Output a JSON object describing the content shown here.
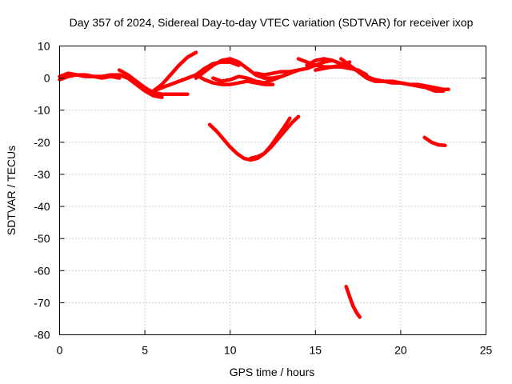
{
  "chart_data": {
    "type": "line",
    "title": "Day 357 of 2024, Sidereal Day-to-day VTEC variation (SDTVAR) for receiver ixop",
    "xlabel": "GPS time / hours",
    "ylabel": "SDTVAR / TECUs",
    "xlim": [
      0,
      25
    ],
    "ylim": [
      -80,
      10
    ],
    "xticks": [
      0,
      5,
      10,
      15,
      20,
      25
    ],
    "yticks": [
      -80,
      -70,
      -60,
      -50,
      -40,
      -30,
      -20,
      -10,
      0,
      10
    ],
    "grid": true,
    "series_color": "#ff0000",
    "series": [
      {
        "name": "arc-early-flat",
        "x": [
          0,
          0.5,
          1,
          1.5,
          2,
          2.5,
          3,
          3.5
        ],
        "y": [
          -0.5,
          0.5,
          1,
          0.5,
          0.5,
          0.5,
          1,
          1
        ]
      },
      {
        "name": "arc-early-flat-b",
        "x": [
          0,
          0.5,
          1,
          1.5,
          2,
          2.5,
          3,
          3.5
        ],
        "y": [
          0.5,
          1.5,
          1,
          1,
          0.5,
          0,
          0.5,
          0
        ]
      },
      {
        "name": "arc-dip-a",
        "x": [
          3.5,
          4,
          4.5,
          5,
          5.5,
          6,
          6.5,
          7,
          7.5
        ],
        "y": [
          2.5,
          1,
          -1,
          -3,
          -4.5,
          -5,
          -5,
          -5,
          -5
        ]
      },
      {
        "name": "arc-dip-b",
        "x": [
          2.5,
          3.5,
          4,
          4.5,
          5,
          5.5,
          6
        ],
        "y": [
          0.5,
          1,
          0,
          -2,
          -4,
          -5.5,
          -6
        ]
      },
      {
        "name": "arc-rise-a",
        "x": [
          5.5,
          6,
          6.5,
          7,
          7.5,
          8
        ],
        "y": [
          -4,
          -2,
          1,
          4,
          6.5,
          8
        ]
      },
      {
        "name": "arc-rise-b",
        "x": [
          5.5,
          6,
          6.5,
          7,
          7.5,
          8,
          8.5,
          9,
          9.5,
          10,
          10.5
        ],
        "y": [
          -4,
          -3,
          -2,
          -1,
          0,
          1,
          3,
          4.5,
          5,
          5,
          4
        ]
      },
      {
        "name": "arc-mid-a",
        "x": [
          8,
          8.5,
          9,
          9.5,
          10,
          10.5,
          11,
          11.5,
          12,
          12.5,
          13
        ],
        "y": [
          0,
          2,
          4,
          5.5,
          6,
          5,
          3,
          1,
          0,
          0,
          0.5
        ]
      },
      {
        "name": "arc-mid-b",
        "x": [
          8,
          8.5,
          9,
          9.5,
          10,
          10.5,
          11,
          11.5,
          12,
          12.5
        ],
        "y": [
          1,
          -0.5,
          -1.5,
          -2,
          -2,
          -1.5,
          -1,
          -1.5,
          -2,
          -2
        ]
      },
      {
        "name": "arc-mid-c",
        "x": [
          9,
          9.5,
          10,
          10.5,
          11,
          11.5,
          12,
          12.5,
          13,
          13.5,
          14
        ],
        "y": [
          0,
          -1,
          -0.5,
          0.5,
          0,
          -1,
          -1.5,
          -0.5,
          0.5,
          1.5,
          2.5
        ]
      },
      {
        "name": "arc-mid-d",
        "x": [
          11.5,
          12,
          12.5,
          13,
          13.5,
          14,
          14.5,
          15,
          15.5,
          16
        ],
        "y": [
          1.5,
          1,
          1.5,
          2,
          2,
          2.5,
          3,
          4,
          5,
          5.5
        ]
      },
      {
        "name": "arc-high-a",
        "x": [
          14,
          14.5,
          15,
          15.5,
          16,
          16.5,
          17
        ],
        "y": [
          6,
          5,
          4,
          3.5,
          3.5,
          4,
          5
        ]
      },
      {
        "name": "arc-high-b",
        "x": [
          15,
          15.5,
          16,
          16.5,
          17,
          17.5,
          18
        ],
        "y": [
          2.5,
          3,
          3.5,
          3.5,
          3,
          2.5,
          1
        ]
      },
      {
        "name": "arc-high-c",
        "x": [
          14.5,
          15,
          15.5,
          16,
          16.5,
          17
        ],
        "y": [
          4,
          5.5,
          6,
          5.5,
          4.5,
          3.5
        ]
      },
      {
        "name": "arc-late-a",
        "x": [
          16.5,
          17,
          17.5,
          18,
          18.5,
          19,
          19.5,
          20,
          20.5,
          21,
          21.5,
          22,
          22.5,
          22.8
        ],
        "y": [
          6,
          4,
          2,
          0,
          -1,
          -1,
          -1.5,
          -1.5,
          -2,
          -2,
          -2.5,
          -3,
          -3.5,
          -3.5
        ]
      },
      {
        "name": "arc-late-b",
        "x": [
          18,
          18.5,
          19,
          19.5,
          20,
          20.5,
          21,
          21.5,
          22,
          22.5
        ],
        "y": [
          0.5,
          -0.5,
          -1,
          -1,
          -1.5,
          -2,
          -2.5,
          -3,
          -4,
          -4
        ]
      },
      {
        "name": "arc-u-a",
        "x": [
          8.8,
          9.2,
          9.6,
          10,
          10.4,
          10.8,
          11.2,
          11.6,
          12,
          12.4,
          12.8,
          13.2,
          13.5
        ],
        "y": [
          -14.5,
          -16.5,
          -19,
          -21.5,
          -23.5,
          -25,
          -25.5,
          -25,
          -23.5,
          -21,
          -18,
          -15,
          -12.5
        ]
      },
      {
        "name": "arc-u-b",
        "x": [
          11.2,
          11.6,
          12,
          12.4,
          12.8,
          13.2,
          13.6,
          14
        ],
        "y": [
          -25,
          -24.5,
          -23.5,
          -21.5,
          -19,
          -16.5,
          -14,
          -12
        ]
      },
      {
        "name": "arc-right-small",
        "x": [
          21.4,
          21.8,
          22.2,
          22.6
        ],
        "y": [
          -18.5,
          -20,
          -20.8,
          -21
        ]
      },
      {
        "name": "arc-bottom",
        "x": [
          16.8,
          17,
          17.2,
          17.4,
          17.6
        ],
        "y": [
          -65,
          -68,
          -71,
          -73,
          -74.5
        ]
      }
    ]
  }
}
